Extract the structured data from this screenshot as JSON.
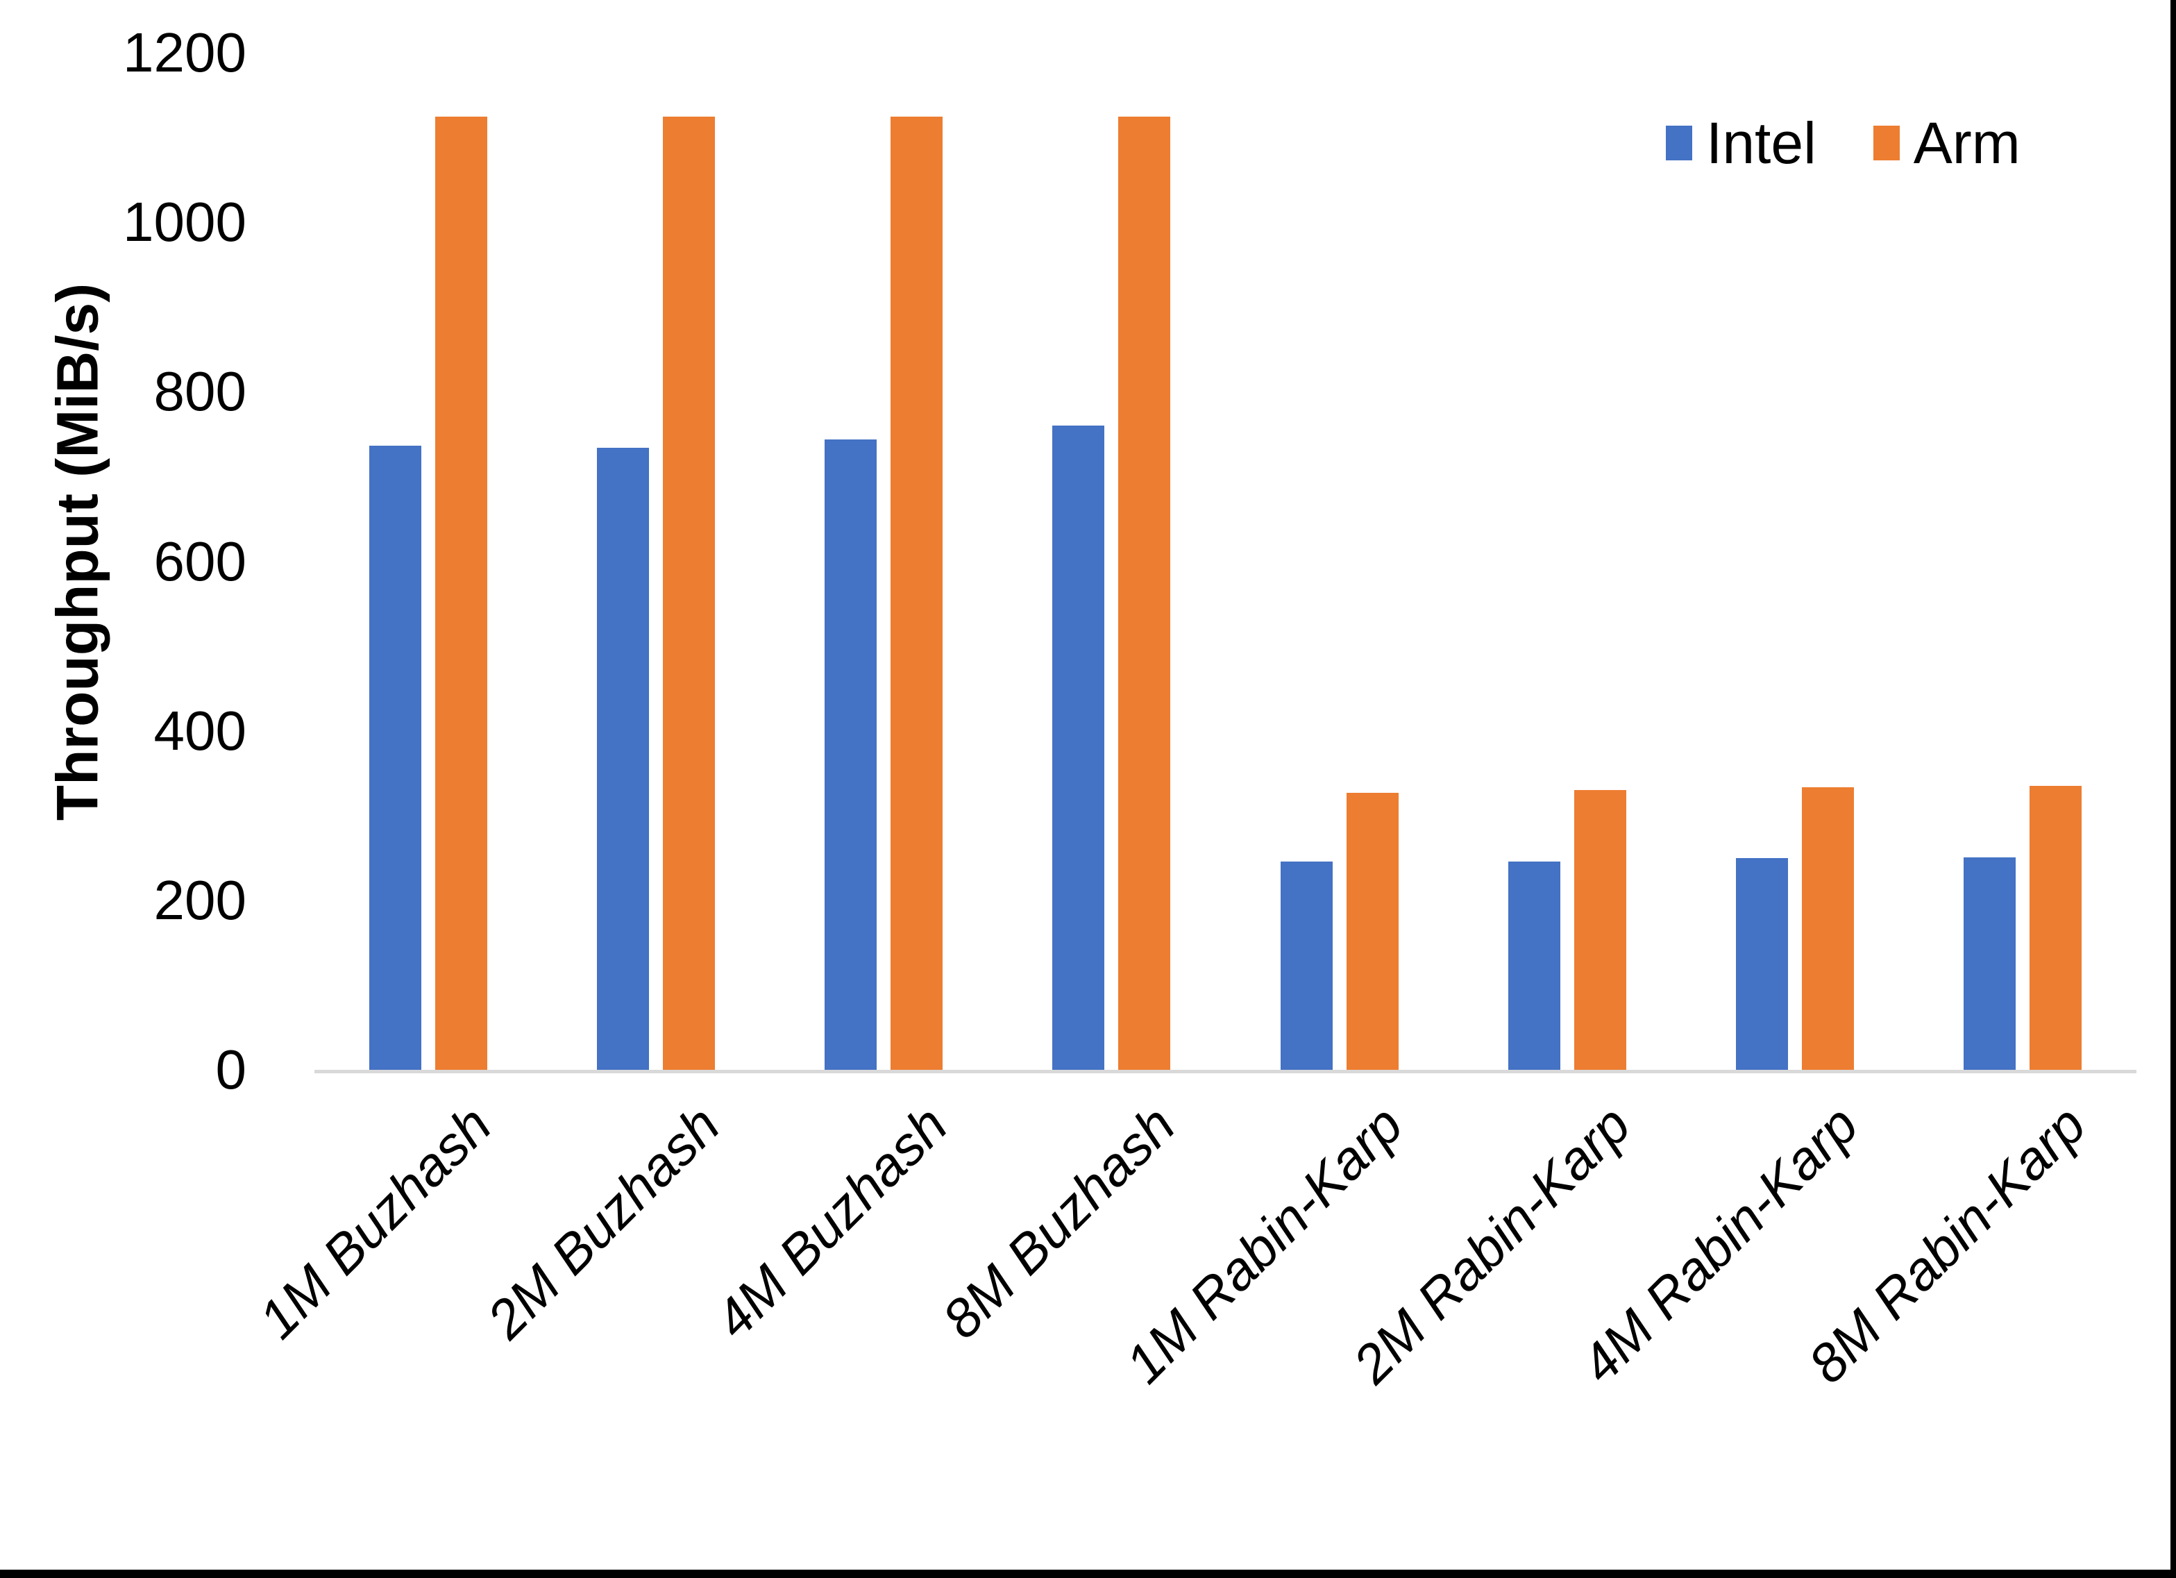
{
  "chart_data": {
    "type": "bar",
    "title": "",
    "xlabel": "",
    "ylabel": "Throughput (MiB/s)",
    "ylim": [
      0,
      1200
    ],
    "yticks": [
      0,
      200,
      400,
      600,
      800,
      1000,
      1200
    ],
    "grid": false,
    "legend_position": "top-right",
    "categories": [
      "1M Buzhash",
      "2M Buzhash",
      "4M Buzhash",
      "8M Buzhash",
      "1M Rabin-Karp",
      "2M Rabin-Karp",
      "4M Rabin-Karp",
      "8M Rabin-Karp"
    ],
    "series": [
      {
        "name": "Intel",
        "color": "#4472C4",
        "values": [
          736,
          734,
          744,
          760,
          246,
          246,
          250,
          251
        ]
      },
      {
        "name": "Arm",
        "color": "#ED7D31",
        "values": [
          1125,
          1125,
          1125,
          1125,
          327,
          330,
          333,
          335
        ]
      }
    ]
  },
  "colors": {
    "axis_line": "#D9D9D9",
    "text": "#000000",
    "background": "#FFFFFF",
    "frame": "#000000"
  }
}
